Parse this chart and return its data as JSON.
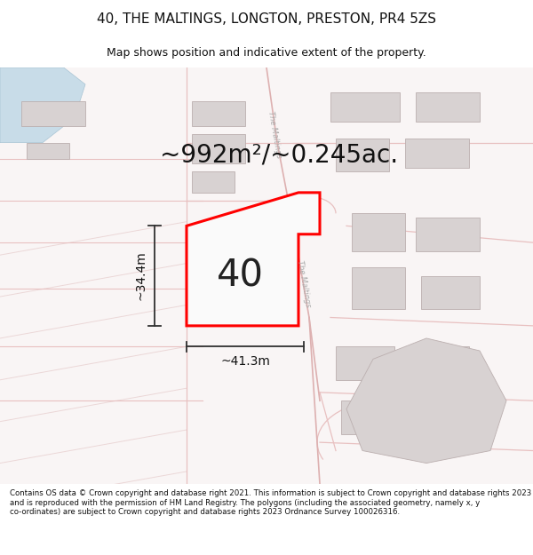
{
  "title": "40, THE MALTINGS, LONGTON, PRESTON, PR4 5ZS",
  "subtitle": "Map shows position and indicative extent of the property.",
  "area_text": "~992m²/~0.245ac.",
  "label_40": "40",
  "dim_height": "~34.4m",
  "dim_width": "~41.3m",
  "footer": "Contains OS data © Crown copyright and database right 2021. This information is subject to Crown copyright and database rights 2023 and is reproduced with the permission of HM Land Registry. The polygons (including the associated geometry, namely x, y co-ordinates) are subject to Crown copyright and database rights 2023 Ordnance Survey 100026316.",
  "bg_map_color": "#f9f5f5",
  "bg_color": "#ffffff",
  "road_color": "#e8c0c0",
  "road_color2": "#ddb0b0",
  "building_color": "#d8d2d2",
  "building_edge_color": "#bbafaf",
  "water_color": "#c8dce8",
  "highlight_color": "#ff0000",
  "arrow_color": "#303030",
  "title_fontsize": 11,
  "subtitle_fontsize": 9,
  "area_fontsize": 20,
  "label_fontsize": 30,
  "dim_fontsize": 10,
  "footer_fontsize": 6.2,
  "road_label_color": "#aaaaaa",
  "road_label_fontsize": 6
}
